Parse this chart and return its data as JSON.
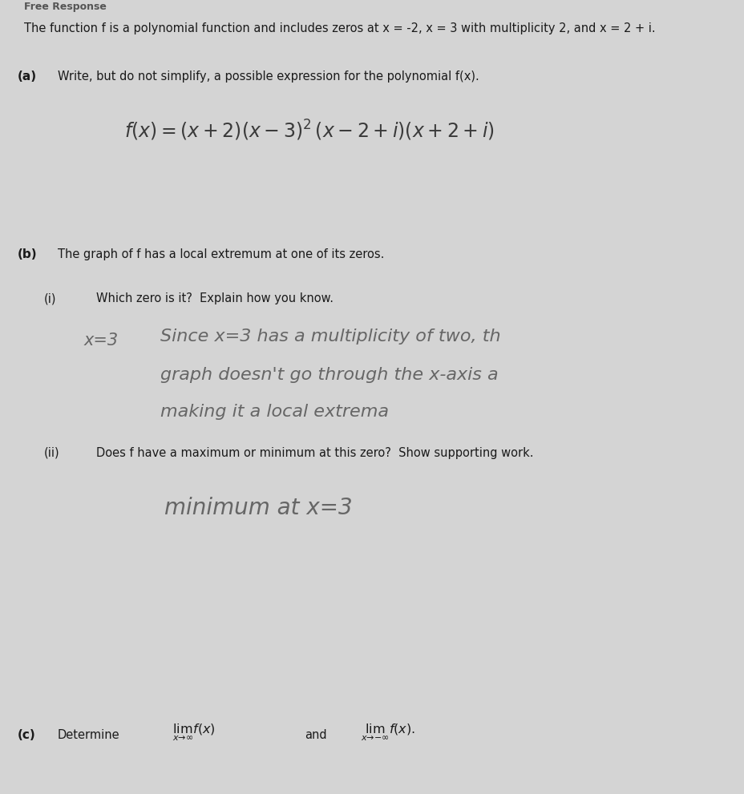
{
  "bg_color": "#d4d4d4",
  "paper_color": "#d8d6d2",
  "intro_text": "The function f is a polynomial function and includes zeros at x = -2, x = 3 with multiplicity 2, and x = 2 + i.",
  "part_a_label": "(a)",
  "part_a_text": "Write, but do not simplify, a possible expression for the polynomial f(x).",
  "part_b_label": "(b)",
  "part_b_text": "The graph of f has a local extremum at one of its zeros.",
  "part_b_i_label": "(i)",
  "part_b_i_text": "Which zero is it?  Explain how you know.",
  "part_b_i_answer_label": "x=3",
  "part_b_i_answer_line1": "Since x=3 has a multiplicity of two, th",
  "part_b_i_answer_line2": "graph doesn't go through the x-axis a",
  "part_b_i_answer_line3": "making it a local extrema",
  "part_b_ii_label": "(ii)",
  "part_b_ii_text": "Does f have a maximum or minimum at this zero?  Show supporting work.",
  "part_b_ii_answer": "minimum at x=3",
  "part_c_label": "(c)",
  "part_c_text": "Determine",
  "printed_color": "#1a1a1a",
  "handwritten_color": "#666666",
  "header_color": "#555555"
}
